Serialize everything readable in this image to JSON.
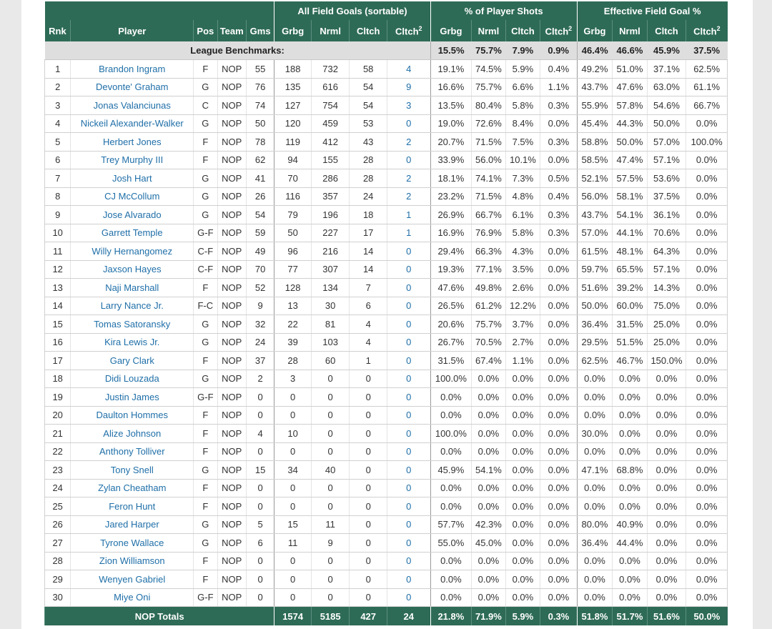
{
  "header": {
    "groups": {
      "fg": "All Field Goals (sortable)",
      "pct": "% of Player Shots",
      "efg": "Effective Field Goal %"
    },
    "columns": {
      "rnk": "Rnk",
      "player": "Player",
      "pos": "Pos",
      "team": "Team",
      "gms": "Gms",
      "grbg": "Grbg",
      "nrml": "Nrml",
      "cltch": "Cltch",
      "cltch2": "Cltch",
      "sup": "2"
    }
  },
  "benchmarks": {
    "label": "League Benchmarks:",
    "pct": [
      "15.5%",
      "75.7%",
      "7.9%",
      "0.9%"
    ],
    "efg": [
      "46.4%",
      "46.6%",
      "45.9%",
      "37.5%"
    ]
  },
  "rows": [
    {
      "rnk": "1",
      "player": "Brandon Ingram",
      "pos": "F",
      "team": "NOP",
      "gms": "55",
      "fg": [
        "188",
        "732",
        "58",
        "4"
      ],
      "pct": [
        "19.1%",
        "74.5%",
        "5.9%",
        "0.4%"
      ],
      "efg": [
        "49.2%",
        "51.0%",
        "37.1%",
        "62.5%"
      ]
    },
    {
      "rnk": "2",
      "player": "Devonte' Graham",
      "pos": "G",
      "team": "NOP",
      "gms": "76",
      "fg": [
        "135",
        "616",
        "54",
        "9"
      ],
      "pct": [
        "16.6%",
        "75.7%",
        "6.6%",
        "1.1%"
      ],
      "efg": [
        "43.7%",
        "47.6%",
        "63.0%",
        "61.1%"
      ]
    },
    {
      "rnk": "3",
      "player": "Jonas Valanciunas",
      "pos": "C",
      "team": "NOP",
      "gms": "74",
      "fg": [
        "127",
        "754",
        "54",
        "3"
      ],
      "pct": [
        "13.5%",
        "80.4%",
        "5.8%",
        "0.3%"
      ],
      "efg": [
        "55.9%",
        "57.8%",
        "54.6%",
        "66.7%"
      ]
    },
    {
      "rnk": "4",
      "player": "Nickeil Alexander-Walker",
      "pos": "G",
      "team": "NOP",
      "gms": "50",
      "fg": [
        "120",
        "459",
        "53",
        "0"
      ],
      "pct": [
        "19.0%",
        "72.6%",
        "8.4%",
        "0.0%"
      ],
      "efg": [
        "45.4%",
        "44.3%",
        "50.0%",
        "0.0%"
      ]
    },
    {
      "rnk": "5",
      "player": "Herbert Jones",
      "pos": "F",
      "team": "NOP",
      "gms": "78",
      "fg": [
        "119",
        "412",
        "43",
        "2"
      ],
      "pct": [
        "20.7%",
        "71.5%",
        "7.5%",
        "0.3%"
      ],
      "efg": [
        "58.8%",
        "50.0%",
        "57.0%",
        "100.0%"
      ]
    },
    {
      "rnk": "6",
      "player": "Trey Murphy III",
      "pos": "F",
      "team": "NOP",
      "gms": "62",
      "fg": [
        "94",
        "155",
        "28",
        "0"
      ],
      "pct": [
        "33.9%",
        "56.0%",
        "10.1%",
        "0.0%"
      ],
      "efg": [
        "58.5%",
        "47.4%",
        "57.1%",
        "0.0%"
      ]
    },
    {
      "rnk": "7",
      "player": "Josh Hart",
      "pos": "G",
      "team": "NOP",
      "gms": "41",
      "fg": [
        "70",
        "286",
        "28",
        "2"
      ],
      "pct": [
        "18.1%",
        "74.1%",
        "7.3%",
        "0.5%"
      ],
      "efg": [
        "52.1%",
        "57.5%",
        "53.6%",
        "0.0%"
      ]
    },
    {
      "rnk": "8",
      "player": "CJ McCollum",
      "pos": "G",
      "team": "NOP",
      "gms": "26",
      "fg": [
        "116",
        "357",
        "24",
        "2"
      ],
      "pct": [
        "23.2%",
        "71.5%",
        "4.8%",
        "0.4%"
      ],
      "efg": [
        "56.0%",
        "58.1%",
        "37.5%",
        "0.0%"
      ]
    },
    {
      "rnk": "9",
      "player": "Jose Alvarado",
      "pos": "G",
      "team": "NOP",
      "gms": "54",
      "fg": [
        "79",
        "196",
        "18",
        "1"
      ],
      "pct": [
        "26.9%",
        "66.7%",
        "6.1%",
        "0.3%"
      ],
      "efg": [
        "43.7%",
        "54.1%",
        "36.1%",
        "0.0%"
      ]
    },
    {
      "rnk": "10",
      "player": "Garrett Temple",
      "pos": "G-F",
      "team": "NOP",
      "gms": "59",
      "fg": [
        "50",
        "227",
        "17",
        "1"
      ],
      "pct": [
        "16.9%",
        "76.9%",
        "5.8%",
        "0.3%"
      ],
      "efg": [
        "57.0%",
        "44.1%",
        "70.6%",
        "0.0%"
      ]
    },
    {
      "rnk": "11",
      "player": "Willy Hernangomez",
      "pos": "C-F",
      "team": "NOP",
      "gms": "49",
      "fg": [
        "96",
        "216",
        "14",
        "0"
      ],
      "pct": [
        "29.4%",
        "66.3%",
        "4.3%",
        "0.0%"
      ],
      "efg": [
        "61.5%",
        "48.1%",
        "64.3%",
        "0.0%"
      ]
    },
    {
      "rnk": "12",
      "player": "Jaxson Hayes",
      "pos": "C-F",
      "team": "NOP",
      "gms": "70",
      "fg": [
        "77",
        "307",
        "14",
        "0"
      ],
      "pct": [
        "19.3%",
        "77.1%",
        "3.5%",
        "0.0%"
      ],
      "efg": [
        "59.7%",
        "65.5%",
        "57.1%",
        "0.0%"
      ]
    },
    {
      "rnk": "13",
      "player": "Naji Marshall",
      "pos": "F",
      "team": "NOP",
      "gms": "52",
      "fg": [
        "128",
        "134",
        "7",
        "0"
      ],
      "pct": [
        "47.6%",
        "49.8%",
        "2.6%",
        "0.0%"
      ],
      "efg": [
        "51.6%",
        "39.2%",
        "14.3%",
        "0.0%"
      ]
    },
    {
      "rnk": "14",
      "player": "Larry Nance Jr.",
      "pos": "F-C",
      "team": "NOP",
      "gms": "9",
      "fg": [
        "13",
        "30",
        "6",
        "0"
      ],
      "pct": [
        "26.5%",
        "61.2%",
        "12.2%",
        "0.0%"
      ],
      "efg": [
        "50.0%",
        "60.0%",
        "75.0%",
        "0.0%"
      ]
    },
    {
      "rnk": "15",
      "player": "Tomas Satoransky",
      "pos": "G",
      "team": "NOP",
      "gms": "32",
      "fg": [
        "22",
        "81",
        "4",
        "0"
      ],
      "pct": [
        "20.6%",
        "75.7%",
        "3.7%",
        "0.0%"
      ],
      "efg": [
        "36.4%",
        "31.5%",
        "25.0%",
        "0.0%"
      ]
    },
    {
      "rnk": "16",
      "player": "Kira Lewis Jr.",
      "pos": "G",
      "team": "NOP",
      "gms": "24",
      "fg": [
        "39",
        "103",
        "4",
        "0"
      ],
      "pct": [
        "26.7%",
        "70.5%",
        "2.7%",
        "0.0%"
      ],
      "efg": [
        "29.5%",
        "51.5%",
        "25.0%",
        "0.0%"
      ]
    },
    {
      "rnk": "17",
      "player": "Gary Clark",
      "pos": "F",
      "team": "NOP",
      "gms": "37",
      "fg": [
        "28",
        "60",
        "1",
        "0"
      ],
      "pct": [
        "31.5%",
        "67.4%",
        "1.1%",
        "0.0%"
      ],
      "efg": [
        "62.5%",
        "46.7%",
        "150.0%",
        "0.0%"
      ]
    },
    {
      "rnk": "18",
      "player": "Didi Louzada",
      "pos": "G",
      "team": "NOP",
      "gms": "2",
      "fg": [
        "3",
        "0",
        "0",
        "0"
      ],
      "pct": [
        "100.0%",
        "0.0%",
        "0.0%",
        "0.0%"
      ],
      "efg": [
        "0.0%",
        "0.0%",
        "0.0%",
        "0.0%"
      ]
    },
    {
      "rnk": "19",
      "player": "Justin James",
      "pos": "G-F",
      "team": "NOP",
      "gms": "0",
      "fg": [
        "0",
        "0",
        "0",
        "0"
      ],
      "pct": [
        "0.0%",
        "0.0%",
        "0.0%",
        "0.0%"
      ],
      "efg": [
        "0.0%",
        "0.0%",
        "0.0%",
        "0.0%"
      ]
    },
    {
      "rnk": "20",
      "player": "Daulton Hommes",
      "pos": "F",
      "team": "NOP",
      "gms": "0",
      "fg": [
        "0",
        "0",
        "0",
        "0"
      ],
      "pct": [
        "0.0%",
        "0.0%",
        "0.0%",
        "0.0%"
      ],
      "efg": [
        "0.0%",
        "0.0%",
        "0.0%",
        "0.0%"
      ]
    },
    {
      "rnk": "21",
      "player": "Alize Johnson",
      "pos": "F",
      "team": "NOP",
      "gms": "4",
      "fg": [
        "10",
        "0",
        "0",
        "0"
      ],
      "pct": [
        "100.0%",
        "0.0%",
        "0.0%",
        "0.0%"
      ],
      "efg": [
        "30.0%",
        "0.0%",
        "0.0%",
        "0.0%"
      ]
    },
    {
      "rnk": "22",
      "player": "Anthony Tolliver",
      "pos": "F",
      "team": "NOP",
      "gms": "0",
      "fg": [
        "0",
        "0",
        "0",
        "0"
      ],
      "pct": [
        "0.0%",
        "0.0%",
        "0.0%",
        "0.0%"
      ],
      "efg": [
        "0.0%",
        "0.0%",
        "0.0%",
        "0.0%"
      ]
    },
    {
      "rnk": "23",
      "player": "Tony Snell",
      "pos": "G",
      "team": "NOP",
      "gms": "15",
      "fg": [
        "34",
        "40",
        "0",
        "0"
      ],
      "pct": [
        "45.9%",
        "54.1%",
        "0.0%",
        "0.0%"
      ],
      "efg": [
        "47.1%",
        "68.8%",
        "0.0%",
        "0.0%"
      ]
    },
    {
      "rnk": "24",
      "player": "Zylan Cheatham",
      "pos": "F",
      "team": "NOP",
      "gms": "0",
      "fg": [
        "0",
        "0",
        "0",
        "0"
      ],
      "pct": [
        "0.0%",
        "0.0%",
        "0.0%",
        "0.0%"
      ],
      "efg": [
        "0.0%",
        "0.0%",
        "0.0%",
        "0.0%"
      ]
    },
    {
      "rnk": "25",
      "player": "Feron Hunt",
      "pos": "F",
      "team": "NOP",
      "gms": "0",
      "fg": [
        "0",
        "0",
        "0",
        "0"
      ],
      "pct": [
        "0.0%",
        "0.0%",
        "0.0%",
        "0.0%"
      ],
      "efg": [
        "0.0%",
        "0.0%",
        "0.0%",
        "0.0%"
      ]
    },
    {
      "rnk": "26",
      "player": "Jared Harper",
      "pos": "G",
      "team": "NOP",
      "gms": "5",
      "fg": [
        "15",
        "11",
        "0",
        "0"
      ],
      "pct": [
        "57.7%",
        "42.3%",
        "0.0%",
        "0.0%"
      ],
      "efg": [
        "80.0%",
        "40.9%",
        "0.0%",
        "0.0%"
      ]
    },
    {
      "rnk": "27",
      "player": "Tyrone Wallace",
      "pos": "G",
      "team": "NOP",
      "gms": "6",
      "fg": [
        "11",
        "9",
        "0",
        "0"
      ],
      "pct": [
        "55.0%",
        "45.0%",
        "0.0%",
        "0.0%"
      ],
      "efg": [
        "36.4%",
        "44.4%",
        "0.0%",
        "0.0%"
      ]
    },
    {
      "rnk": "28",
      "player": "Zion Williamson",
      "pos": "F",
      "team": "NOP",
      "gms": "0",
      "fg": [
        "0",
        "0",
        "0",
        "0"
      ],
      "pct": [
        "0.0%",
        "0.0%",
        "0.0%",
        "0.0%"
      ],
      "efg": [
        "0.0%",
        "0.0%",
        "0.0%",
        "0.0%"
      ]
    },
    {
      "rnk": "29",
      "player": "Wenyen Gabriel",
      "pos": "F",
      "team": "NOP",
      "gms": "0",
      "fg": [
        "0",
        "0",
        "0",
        "0"
      ],
      "pct": [
        "0.0%",
        "0.0%",
        "0.0%",
        "0.0%"
      ],
      "efg": [
        "0.0%",
        "0.0%",
        "0.0%",
        "0.0%"
      ]
    },
    {
      "rnk": "30",
      "player": "Miye Oni",
      "pos": "G-F",
      "team": "NOP",
      "gms": "0",
      "fg": [
        "0",
        "0",
        "0",
        "0"
      ],
      "pct": [
        "0.0%",
        "0.0%",
        "0.0%",
        "0.0%"
      ],
      "efg": [
        "0.0%",
        "0.0%",
        "0.0%",
        "0.0%"
      ]
    }
  ],
  "totals": {
    "label": "NOP Totals",
    "fg": [
      "1574",
      "5185",
      "427",
      "24"
    ],
    "pct": [
      "21.8%",
      "71.9%",
      "5.9%",
      "0.3%"
    ],
    "efg": [
      "51.8%",
      "51.7%",
      "51.6%",
      "50.0%"
    ]
  },
  "colors": {
    "header_bg": "#2e6b57",
    "benchmark_bg": "#dedede",
    "link": "#1f6fa8",
    "page_bg": "#e9e9e9"
  }
}
